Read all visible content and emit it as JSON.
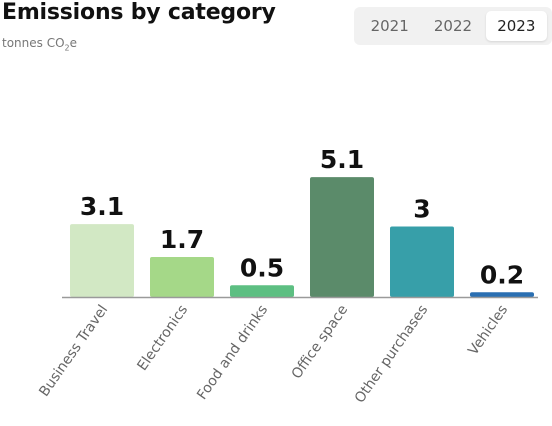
{
  "header": {
    "title": "Emissions by category",
    "subtitle_prefix": "tonnes CO",
    "subtitle_sub": "2",
    "subtitle_suffix": "e"
  },
  "year_switch": {
    "options": [
      "2021",
      "2022",
      "2023"
    ],
    "selected": "2023"
  },
  "chart_data": {
    "type": "bar",
    "title": "Emissions by category",
    "ylabel": "",
    "xlabel": "",
    "categories": [
      "Business Travel",
      "Electronics",
      "Food and drinks",
      "Office space",
      "Other purchases",
      "Vehicles"
    ],
    "values": [
      3.1,
      1.7,
      0.5,
      5.1,
      3,
      0.2
    ],
    "data_labels": [
      "3.1",
      "1.7",
      "0.5",
      "5.1",
      "3",
      "0.2"
    ],
    "colors": [
      "#d2e8c4",
      "#a5d888",
      "#5dbf82",
      "#5b8b6a",
      "#379fa9",
      "#2a6fb2"
    ],
    "grid": false,
    "legend": "none"
  }
}
